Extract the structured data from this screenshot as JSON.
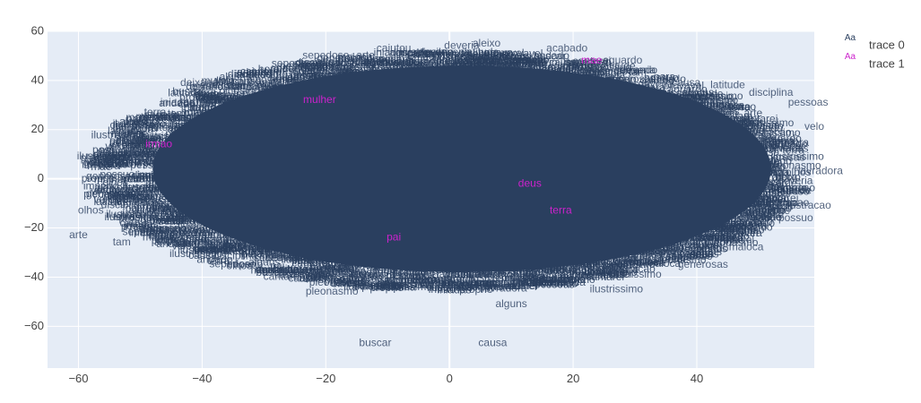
{
  "chart_data": {
    "type": "scatter",
    "mode": "text",
    "xlim": [
      -65,
      59
    ],
    "ylim": [
      -77,
      60
    ],
    "x_ticks": [
      -60,
      -40,
      -20,
      0,
      20,
      40
    ],
    "y_ticks": [
      -60,
      -40,
      -20,
      0,
      20,
      40,
      60
    ],
    "grid": true,
    "legend_position": "top-right",
    "colors": {
      "plot_bg": "#e5ecf6",
      "grid": "#ffffff",
      "trace0": "#2a3f5f",
      "trace1": "#cc22cc"
    },
    "series": [
      {
        "name": "trace 0",
        "legend_marker": "Aa",
        "points": [
          {
            "x": -12,
            "y": -67,
            "text": "buscar"
          },
          {
            "x": 7,
            "y": -67,
            "text": "causa"
          },
          {
            "x": 6,
            "y": 55,
            "text": "aleixo"
          },
          {
            "x": 2,
            "y": 54,
            "text": "deveria"
          },
          {
            "x": -9,
            "y": 53,
            "text": "caiutou"
          },
          {
            "x": 19,
            "y": 53,
            "text": "acabado"
          },
          {
            "x": -20,
            "y": 50,
            "text": "sepedoso"
          },
          {
            "x": 28,
            "y": 48,
            "text": "aguardo"
          },
          {
            "x": -40,
            "y": 39,
            "text": "deixando"
          },
          {
            "x": 45,
            "y": 38,
            "text": "latitude"
          },
          {
            "x": 52,
            "y": 35,
            "text": "disciplina"
          },
          {
            "x": 58,
            "y": 31,
            "text": "pessoas"
          },
          {
            "x": -44,
            "y": 31,
            "text": "iniadas"
          },
          {
            "x": -48,
            "y": 25,
            "text": "proprio"
          },
          {
            "x": 59,
            "y": 21,
            "text": "velo"
          },
          {
            "x": -51,
            "y": 18,
            "text": "para"
          },
          {
            "x": 55,
            "y": 14,
            "text": "andado"
          },
          {
            "x": -55,
            "y": 5,
            "text": "hora"
          },
          {
            "x": 60,
            "y": 3,
            "text": "lavradora"
          },
          {
            "x": 54,
            "y": -2,
            "text": "verde"
          },
          {
            "x": -58,
            "y": -13,
            "text": "olhos"
          },
          {
            "x": 58,
            "y": -11,
            "text": "ilustracao"
          },
          {
            "x": 56,
            "y": -16,
            "text": "possuo"
          },
          {
            "x": -60,
            "y": -23,
            "text": "arte"
          },
          {
            "x": 46,
            "y": -25,
            "text": "provavel"
          },
          {
            "x": 48,
            "y": -28,
            "text": "maloca"
          },
          {
            "x": -53,
            "y": -26,
            "text": "tam"
          },
          {
            "x": 41,
            "y": -35,
            "text": "generosas"
          },
          {
            "x": -33,
            "y": -35,
            "text": "imperio"
          },
          {
            "x": 30,
            "y": -39,
            "text": "ilustrissimo"
          },
          {
            "x": 27,
            "y": -45,
            "text": "ilustrissimo"
          },
          {
            "x": -27,
            "y": -40,
            "text": "cantarei"
          },
          {
            "x": -19,
            "y": -46,
            "text": "pleonasmo"
          },
          {
            "x": 10,
            "y": -51,
            "text": "alguns"
          }
        ]
      },
      {
        "name": "trace 1",
        "legend_marker": "Aa",
        "points": [
          {
            "x": -21,
            "y": 32,
            "text": "mulher"
          },
          {
            "x": 23,
            "y": 48,
            "text": "mae"
          },
          {
            "x": -47,
            "y": 14,
            "text": "irmao"
          },
          {
            "x": 13,
            "y": -2,
            "text": "deus"
          },
          {
            "x": 18,
            "y": -13,
            "text": "terra"
          },
          {
            "x": -9,
            "y": -24,
            "text": "pai"
          }
        ]
      }
    ]
  }
}
